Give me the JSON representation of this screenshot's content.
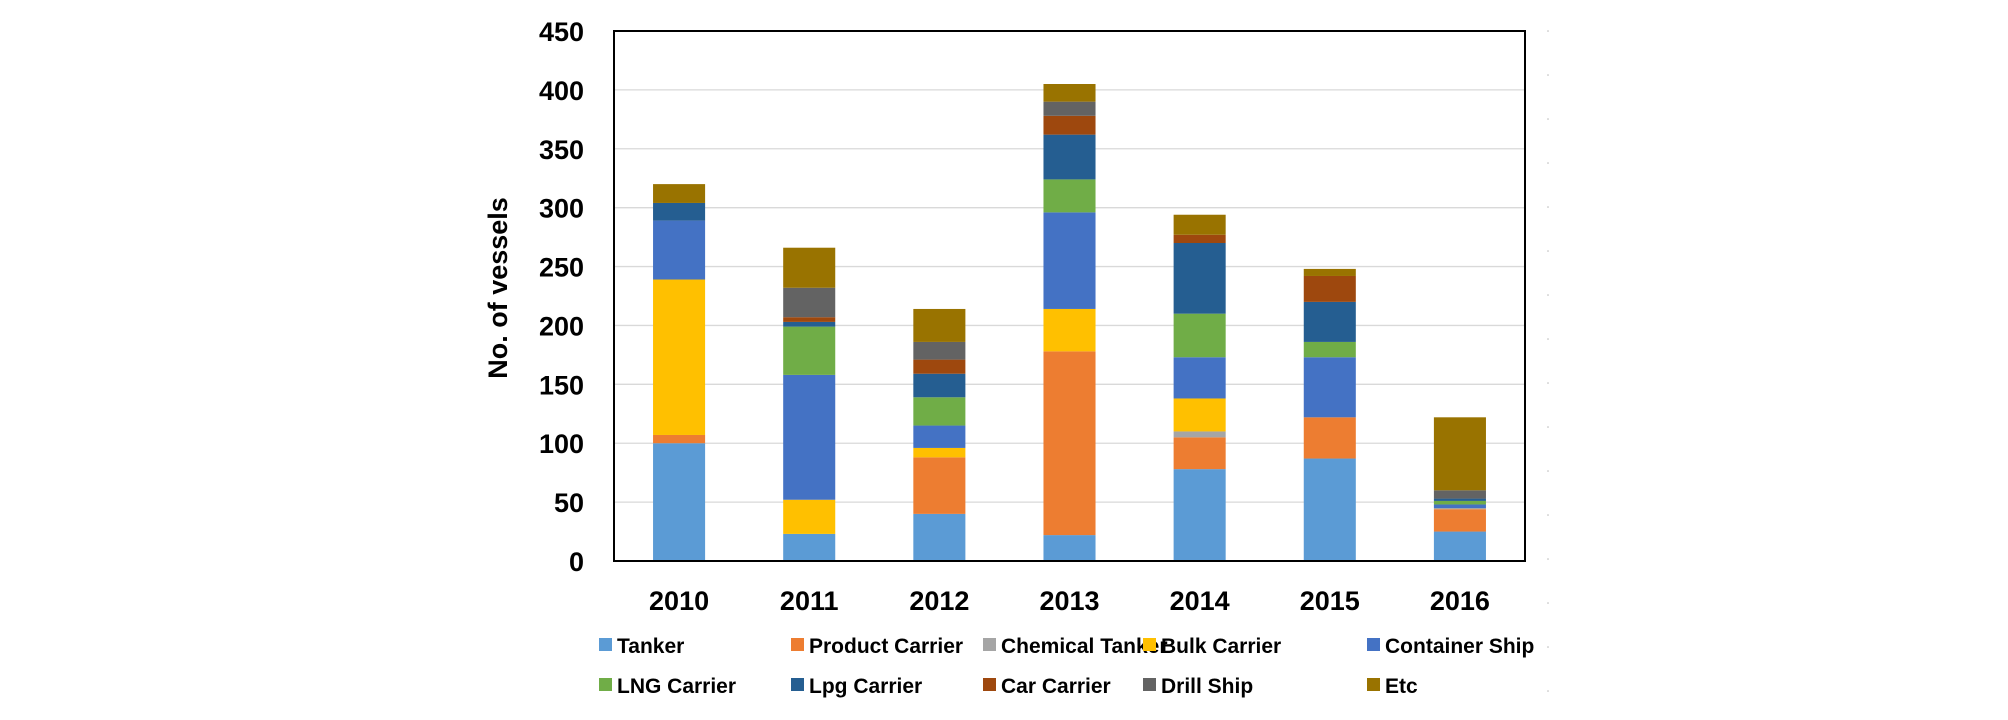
{
  "chart_data": {
    "type": "bar",
    "stacked": true,
    "title": "",
    "xlabel": "",
    "ylabel": "No. of vessels",
    "ylim": [
      0,
      450
    ],
    "ytick_step": 50,
    "ytick_labels": [
      "0",
      "50",
      "100",
      "150",
      "200",
      "250",
      "300",
      "350",
      "400",
      "450"
    ],
    "grid": true,
    "legend_position": "bottom",
    "categories": [
      "2010",
      "2011",
      "2012",
      "2013",
      "2014",
      "2015",
      "2016"
    ],
    "series": [
      {
        "name": "Tanker",
        "color": "#5B9BD5",
        "values": [
          100,
          23,
          40,
          22,
          78,
          87,
          25
        ]
      },
      {
        "name": "Product Carrier",
        "color": "#ED7D31",
        "values": [
          7,
          0,
          48,
          156,
          27,
          35,
          19
        ]
      },
      {
        "name": "Chemical Tanker",
        "color": "#A5A5A5",
        "values": [
          0,
          0,
          0,
          0,
          5,
          0,
          1
        ]
      },
      {
        "name": "Bulk Carrier",
        "color": "#FFC000",
        "values": [
          132,
          29,
          8,
          36,
          28,
          0,
          0
        ]
      },
      {
        "name": "Container Ship",
        "color": "#4472C4",
        "values": [
          50,
          106,
          19,
          82,
          35,
          51,
          3
        ]
      },
      {
        "name": "LNG Carrier",
        "color": "#70AD47",
        "values": [
          0,
          41,
          24,
          28,
          37,
          13,
          3
        ]
      },
      {
        "name": "Lpg Carrier",
        "color": "#255E91",
        "values": [
          15,
          4,
          20,
          38,
          60,
          34,
          2
        ]
      },
      {
        "name": "Car Carrier",
        "color": "#9E480E",
        "values": [
          0,
          4,
          12,
          16,
          7,
          22,
          0
        ]
      },
      {
        "name": "Drill Ship",
        "color": "#636363",
        "values": [
          0,
          25,
          15,
          12,
          0,
          0,
          7
        ]
      },
      {
        "name": "Etc",
        "color": "#997300",
        "values": [
          16,
          34,
          28,
          15,
          17,
          6,
          62
        ]
      }
    ]
  }
}
